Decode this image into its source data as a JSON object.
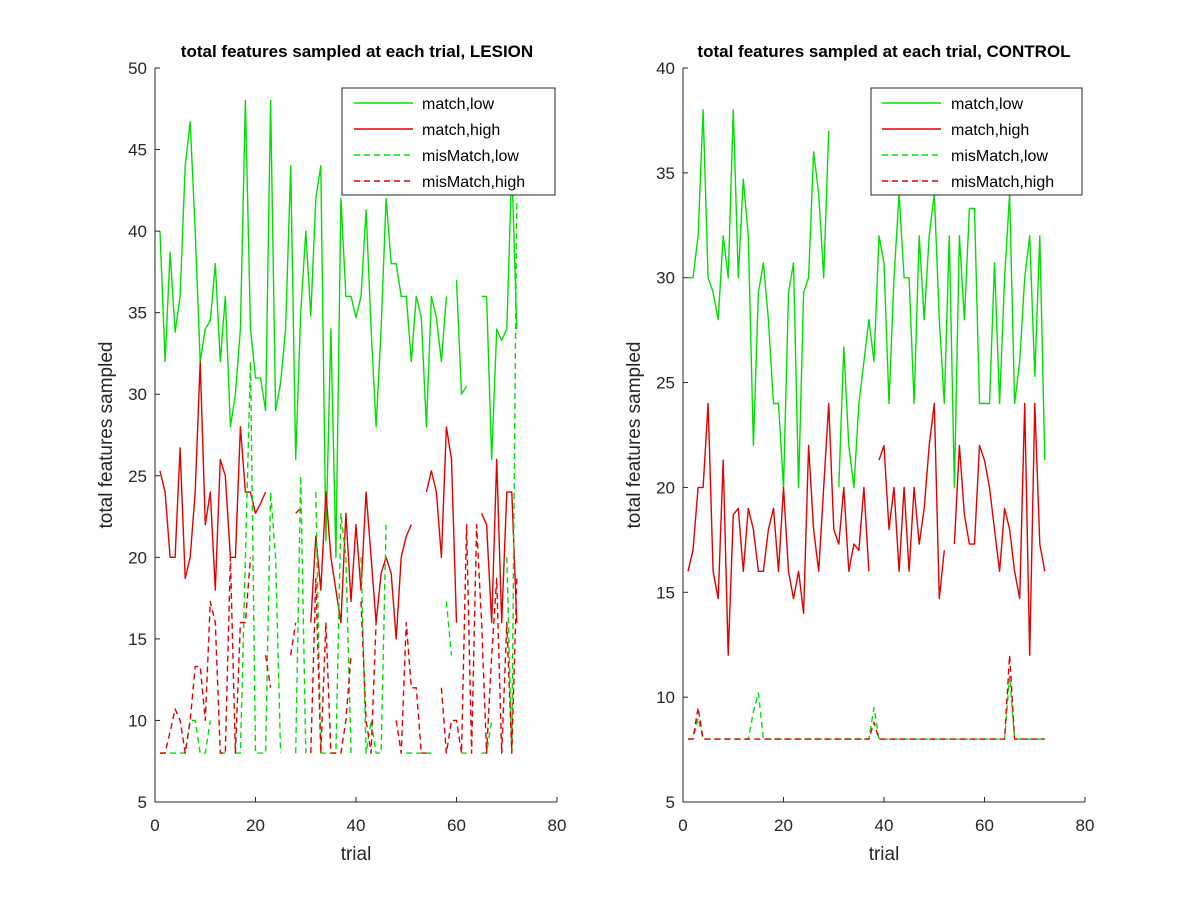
{
  "chart_data": [
    {
      "type": "line",
      "title": "total features sampled at each trial, LESION",
      "xlabel": "trial",
      "ylabel": "total features sampled",
      "xlim": [
        0,
        80
      ],
      "ylim": [
        5,
        50
      ],
      "xticks": [
        0,
        20,
        40,
        60,
        80
      ],
      "yticks": [
        5,
        10,
        15,
        20,
        25,
        30,
        35,
        40,
        45,
        50
      ],
      "grid": false,
      "legend_position": "top-right",
      "x": [
        1,
        2,
        3,
        4,
        5,
        6,
        7,
        8,
        9,
        10,
        11,
        12,
        13,
        14,
        15,
        16,
        17,
        18,
        19,
        20,
        21,
        22,
        23,
        24,
        25,
        26,
        27,
        28,
        29,
        30,
        31,
        32,
        33,
        34,
        35,
        36,
        37,
        38,
        39,
        40,
        41,
        42,
        43,
        44,
        45,
        46,
        47,
        48,
        49,
        50,
        51,
        52,
        53,
        54,
        55,
        56,
        57,
        58,
        59,
        60,
        61,
        62,
        63,
        64,
        65,
        66,
        67,
        68,
        69,
        70,
        71,
        72
      ],
      "series": [
        {
          "name": "match,low",
          "color": "#00e000",
          "dash": "solid",
          "values": [
            40,
            32,
            38.7,
            33.8,
            36,
            44,
            46.7,
            40,
            32,
            34,
            34.5,
            38,
            32,
            36,
            28,
            30,
            34,
            48,
            34,
            31,
            31,
            29,
            48,
            29,
            30.7,
            34,
            44,
            26,
            35,
            40,
            34.8,
            42,
            44,
            21,
            34,
            20,
            42,
            36,
            36,
            34.7,
            36,
            41.3,
            34,
            28,
            34,
            42,
            38,
            38,
            36,
            36,
            32,
            36,
            34.7,
            28,
            36,
            34.7,
            32,
            36,
            null,
            37,
            30,
            30.5,
            null,
            null,
            36,
            36,
            26,
            34,
            33.3,
            34,
            44,
            34
          ]
        },
        {
          "name": "match,high",
          "color": "#e00000",
          "dash": "solid",
          "values": [
            25.3,
            24,
            20,
            20,
            26.7,
            18.7,
            20,
            24,
            32,
            22,
            24,
            18,
            26,
            25,
            20,
            20,
            28,
            24,
            24,
            22.7,
            23.3,
            24,
            null,
            null,
            null,
            null,
            null,
            22.7,
            23,
            null,
            16,
            21.3,
            18,
            24,
            20,
            18,
            16,
            22.7,
            17.3,
            22,
            18,
            24,
            20,
            16,
            19,
            20,
            19,
            15,
            20,
            21.3,
            22,
            null,
            null,
            24,
            25.3,
            24,
            20,
            28,
            26,
            16,
            null,
            null,
            null,
            null,
            22.7,
            22,
            16,
            26,
            16,
            24,
            24,
            16
          ]
        },
        {
          "name": "misMatch,low",
          "color": "#00e000",
          "dash": "dashed",
          "values": [
            8,
            8,
            8,
            8,
            8,
            8,
            10,
            10,
            8,
            8,
            10,
            null,
            8,
            8,
            null,
            8,
            8,
            20,
            32,
            8,
            8,
            8,
            24,
            20,
            8,
            null,
            null,
            8,
            25,
            8,
            null,
            24,
            8,
            8,
            8,
            8,
            22.7,
            20,
            8,
            null,
            20,
            8,
            10,
            8,
            8,
            22,
            null,
            null,
            null,
            8,
            8,
            8,
            8,
            8,
            8,
            null,
            null,
            17.3,
            14,
            null,
            8,
            8,
            null,
            null,
            8,
            8,
            10,
            null,
            null,
            20,
            8,
            42
          ]
        },
        {
          "name": "misMatch,high",
          "color": "#e00000",
          "dash": "dashed",
          "values": [
            8,
            8,
            9.3,
            10.7,
            10,
            8,
            10,
            13.3,
            13.3,
            10,
            17.3,
            16,
            8,
            8,
            20,
            8,
            16,
            16,
            20,
            null,
            null,
            14,
            12,
            null,
            null,
            null,
            14,
            16,
            null,
            null,
            8,
            18.7,
            8,
            16,
            8,
            8,
            8,
            10,
            14,
            null,
            17.3,
            10,
            8,
            16,
            null,
            12,
            null,
            10,
            8,
            16,
            12,
            12,
            8,
            8,
            null,
            null,
            12,
            8,
            10,
            10,
            8,
            22,
            8,
            22,
            16,
            8,
            14,
            18.7,
            8,
            16,
            8,
            18.7
          ]
        }
      ]
    },
    {
      "type": "line",
      "title": "total features sampled at each trial, CONTROL",
      "xlabel": "trial",
      "ylabel": "total features sampled",
      "xlim": [
        0,
        80
      ],
      "ylim": [
        5,
        40
      ],
      "xticks": [
        0,
        20,
        40,
        60,
        80
      ],
      "yticks": [
        5,
        10,
        15,
        20,
        25,
        30,
        35,
        40
      ],
      "grid": false,
      "legend_position": "top-right",
      "x": [
        1,
        2,
        3,
        4,
        5,
        6,
        7,
        8,
        9,
        10,
        11,
        12,
        13,
        14,
        15,
        16,
        17,
        18,
        19,
        20,
        21,
        22,
        23,
        24,
        25,
        26,
        27,
        28,
        29,
        30,
        31,
        32,
        33,
        34,
        35,
        36,
        37,
        38,
        39,
        40,
        41,
        42,
        43,
        44,
        45,
        46,
        47,
        48,
        49,
        50,
        51,
        52,
        53,
        54,
        55,
        56,
        57,
        58,
        59,
        60,
        61,
        62,
        63,
        64,
        65,
        66,
        67,
        68,
        69,
        70,
        71,
        72
      ],
      "series": [
        {
          "name": "match,low",
          "color": "#00e000",
          "dash": "solid",
          "values": [
            30,
            30,
            32,
            38,
            30,
            29.3,
            28,
            32,
            30,
            38,
            30,
            34.7,
            32,
            22,
            29.3,
            30.7,
            28,
            24,
            24,
            20,
            29.3,
            30.7,
            20,
            29.3,
            30,
            36,
            34,
            30,
            37,
            null,
            20,
            26.7,
            22,
            20,
            24,
            26,
            28,
            26,
            32,
            30.7,
            24,
            30,
            34,
            30,
            30,
            24,
            32,
            28,
            32,
            34,
            28,
            24,
            32,
            20,
            32,
            28,
            33.3,
            33.3,
            24,
            24,
            24,
            30.7,
            24,
            30,
            34,
            24,
            26,
            30,
            32,
            25.3,
            32,
            21.3
          ]
        },
        {
          "name": "match,high",
          "color": "#e00000",
          "dash": "solid",
          "values": [
            16,
            17,
            20,
            20,
            24,
            16,
            14.7,
            21.3,
            12,
            18.7,
            19,
            16,
            19,
            18,
            16,
            16,
            18,
            19,
            16,
            20,
            16,
            14.7,
            16,
            14,
            22,
            18,
            16,
            20,
            24,
            18,
            17.3,
            20,
            16,
            17.3,
            17,
            20,
            16,
            null,
            21.3,
            22,
            18,
            20,
            16,
            20,
            16,
            20,
            17.3,
            19,
            22,
            24,
            14.7,
            17,
            null,
            17.3,
            22,
            18.7,
            17.3,
            17.3,
            22,
            21.3,
            20,
            18,
            16,
            19,
            18,
            16,
            14.7,
            24,
            12,
            24,
            17.3,
            16
          ]
        },
        {
          "name": "misMatch,low",
          "color": "#00e000",
          "dash": "dashed",
          "values": [
            8,
            8,
            9,
            8,
            8,
            8,
            8,
            8,
            8,
            8,
            8,
            8,
            8,
            9.3,
            10.2,
            8,
            8,
            8,
            8,
            8,
            8,
            8,
            8,
            8,
            8,
            8,
            8,
            8,
            8,
            8,
            8,
            8,
            8,
            8,
            8,
            8,
            8,
            9.5,
            8,
            8,
            8,
            8,
            8,
            8,
            8,
            8,
            8,
            8,
            8,
            8,
            8,
            8,
            8,
            8,
            8,
            8,
            8,
            8,
            8,
            8,
            8,
            8,
            8,
            8,
            11,
            8,
            8,
            8,
            8,
            8,
            8,
            8
          ]
        },
        {
          "name": "misMatch,high",
          "color": "#e00000",
          "dash": "dashed",
          "values": [
            8,
            8,
            9.5,
            8,
            8,
            8,
            8,
            8,
            8,
            8,
            8,
            8,
            8,
            8,
            8,
            8,
            8,
            8,
            8,
            8,
            8,
            8,
            8,
            8,
            8,
            8,
            8,
            8,
            8,
            8,
            8,
            8,
            8,
            8,
            8,
            8,
            8,
            8.8,
            8,
            8,
            8,
            8,
            8,
            8,
            8,
            8,
            8,
            8,
            8,
            8,
            8,
            8,
            8,
            8,
            8,
            8,
            8,
            8,
            8,
            8,
            8,
            8,
            8,
            8,
            12,
            8,
            8,
            8,
            8,
            8,
            8,
            8
          ]
        }
      ]
    }
  ]
}
